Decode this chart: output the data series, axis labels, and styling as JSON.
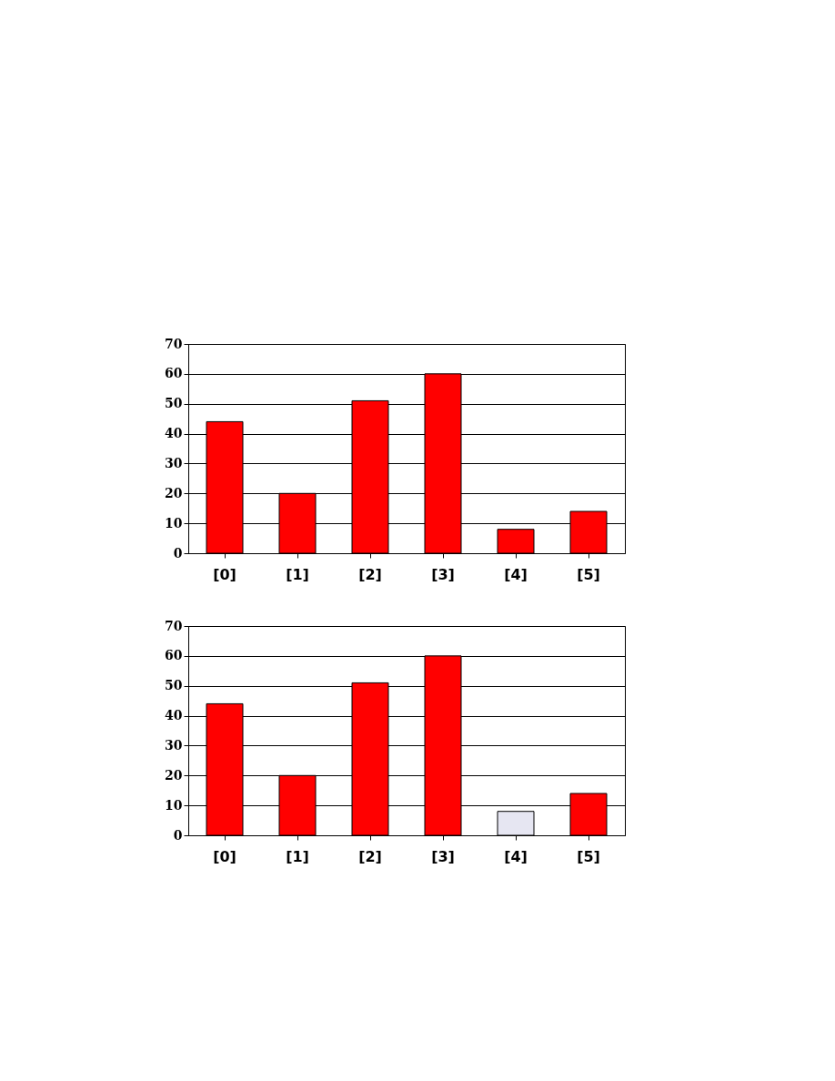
{
  "chart_data": [
    {
      "type": "bar",
      "categories": [
        "[0]",
        "[1]",
        "[2]",
        "[3]",
        "[4]",
        "[5]"
      ],
      "values": [
        44,
        20,
        51,
        60,
        8,
        14
      ],
      "color": "#ff0000",
      "ylim": [
        0,
        70
      ],
      "yticks": [
        0,
        10,
        20,
        30,
        40,
        50,
        60,
        70
      ],
      "grid": "y"
    },
    {
      "type": "bar",
      "categories": [
        "[0]",
        "[1]",
        "[2]",
        "[3]",
        "[4]",
        "[5]"
      ],
      "values": [
        44,
        20,
        51,
        60,
        8,
        14
      ],
      "colors": [
        "#ff0000",
        "#ff0000",
        "#ff0000",
        "#ff0000",
        "#e6e6f2",
        "#ff0000"
      ],
      "ylim": [
        0,
        70
      ],
      "yticks": [
        0,
        10,
        20,
        30,
        40,
        50,
        60,
        70
      ],
      "grid": "y"
    }
  ]
}
